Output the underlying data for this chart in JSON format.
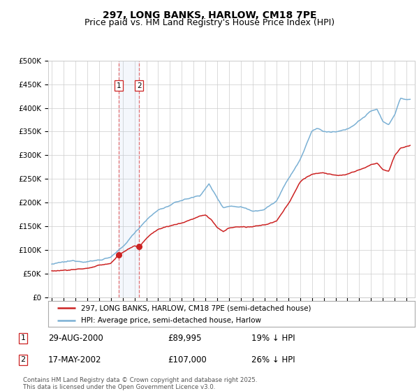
{
  "title": "297, LONG BANKS, HARLOW, CM18 7PE",
  "subtitle": "Price paid vs. HM Land Registry's House Price Index (HPI)",
  "ylim": [
    0,
    500000
  ],
  "background_color": "#ffffff",
  "grid_color": "#cccccc",
  "hpi_color": "#7ab0d4",
  "price_color": "#cc2222",
  "sale1_date": "29-AUG-2000",
  "sale1_price": "£89,995",
  "sale1_pct": "19% ↓ HPI",
  "sale2_date": "17-MAY-2002",
  "sale2_price": "£107,000",
  "sale2_pct": "26% ↓ HPI",
  "sale1_year": 2000.66,
  "sale2_year": 2002.38,
  "sale1_price_val": 89995,
  "sale2_price_val": 107000,
  "legend_line1": "297, LONG BANKS, HARLOW, CM18 7PE (semi-detached house)",
  "legend_line2": "HPI: Average price, semi-detached house, Harlow",
  "footnote1": "Contains HM Land Registry data © Crown copyright and database right 2025.",
  "footnote2": "This data is licensed under the Open Government Licence v3.0.",
  "title_fontsize": 10,
  "subtitle_fontsize": 9,
  "tick_fontsize": 7.5
}
